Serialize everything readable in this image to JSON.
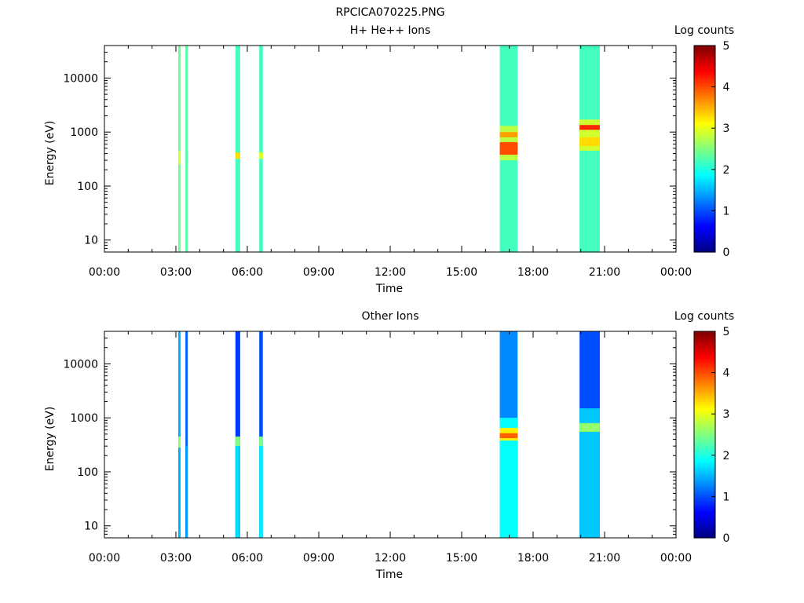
{
  "figure_title": "RPCICA070225.PNG",
  "chart_data": [
    {
      "type": "heatmap",
      "title": "H+ He++ Ions",
      "xlabel": "Time",
      "ylabel": "Energy (eV)",
      "y_scale": "log",
      "ylim": [
        6,
        40000
      ],
      "x_range_hours": [
        0,
        24
      ],
      "x_ticks": [
        "00:00",
        "03:00",
        "06:00",
        "09:00",
        "12:00",
        "15:00",
        "18:00",
        "21:00",
        "00:00"
      ],
      "y_ticks": [
        {
          "value": 10,
          "label": "10"
        },
        {
          "value": 100,
          "label": "100"
        },
        {
          "value": 1000,
          "label": "1000"
        },
        {
          "value": 10000,
          "label": "10000"
        }
      ],
      "colorbar": {
        "label": "Log counts",
        "min": 0,
        "max": 5,
        "ticks": [
          "0",
          "1",
          "2",
          "3",
          "4",
          "5"
        ]
      },
      "grid": false,
      "intervals": [
        {
          "start": 3.1,
          "end": 3.2,
          "base": 2.4,
          "bands": [
            {
              "lo": 250,
              "hi": 450,
              "v": 2.9
            }
          ]
        },
        {
          "start": 3.4,
          "end": 3.5,
          "base": 2.3,
          "bands": []
        },
        {
          "start": 5.5,
          "end": 5.7,
          "base": 2.2,
          "bands": [
            {
              "lo": 320,
              "hi": 420,
              "v": 3.3
            }
          ]
        },
        {
          "start": 6.5,
          "end": 6.65,
          "base": 2.2,
          "bands": [
            {
              "lo": 320,
              "hi": 420,
              "v": 3.0
            }
          ]
        },
        {
          "start": 16.6,
          "end": 17.35,
          "base": 2.2,
          "bands": [
            {
              "lo": 300,
              "hi": 1300,
              "v": 2.8
            },
            {
              "lo": 380,
              "hi": 650,
              "v": 4.0
            },
            {
              "lo": 800,
              "hi": 1000,
              "v": 3.6
            }
          ]
        },
        {
          "start": 19.95,
          "end": 20.8,
          "base": 2.2,
          "bands": [
            {
              "lo": 450,
              "hi": 1700,
              "v": 2.9
            },
            {
              "lo": 1100,
              "hi": 1350,
              "v": 4.2
            },
            {
              "lo": 550,
              "hi": 800,
              "v": 3.3
            }
          ]
        }
      ]
    },
    {
      "type": "heatmap",
      "title": "Other Ions",
      "xlabel": "Time",
      "ylabel": "Energy (eV)",
      "y_scale": "log",
      "ylim": [
        6,
        40000
      ],
      "x_range_hours": [
        0,
        24
      ],
      "x_ticks": [
        "00:00",
        "03:00",
        "06:00",
        "09:00",
        "12:00",
        "15:00",
        "18:00",
        "21:00",
        "00:00"
      ],
      "y_ticks": [
        {
          "value": 10,
          "label": "10"
        },
        {
          "value": 100,
          "label": "100"
        },
        {
          "value": 1000,
          "label": "1000"
        },
        {
          "value": 10000,
          "label": "10000"
        }
      ],
      "colorbar": {
        "label": "Log counts",
        "min": 0,
        "max": 5,
        "ticks": [
          "0",
          "1",
          "2",
          "3",
          "4",
          "5"
        ]
      },
      "grid": false,
      "intervals": [
        {
          "start": 3.1,
          "end": 3.2,
          "base": 1.5,
          "bands": [
            {
              "lo": 280,
              "hi": 450,
              "v": 2.6
            }
          ]
        },
        {
          "start": 3.4,
          "end": 3.5,
          "base": 1.1,
          "bands": [
            {
              "lo": 6,
              "hi": 300,
              "v": 1.4
            }
          ]
        },
        {
          "start": 5.5,
          "end": 5.7,
          "base": 0.9,
          "bands": [
            {
              "lo": 6,
              "hi": 300,
              "v": 1.7
            },
            {
              "lo": 300,
              "hi": 450,
              "v": 2.5
            }
          ]
        },
        {
          "start": 6.5,
          "end": 6.65,
          "base": 1.0,
          "bands": [
            {
              "lo": 6,
              "hi": 300,
              "v": 1.8
            },
            {
              "lo": 300,
              "hi": 450,
              "v": 2.5
            }
          ]
        },
        {
          "start": 16.6,
          "end": 17.35,
          "base": 1.3,
          "bands": [
            {
              "lo": 6,
              "hi": 1000,
              "v": 1.9
            },
            {
              "lo": 380,
              "hi": 650,
              "v": 3.2
            },
            {
              "lo": 420,
              "hi": 520,
              "v": 3.9
            }
          ]
        },
        {
          "start": 19.95,
          "end": 20.8,
          "base": 1.0,
          "bands": [
            {
              "lo": 6,
              "hi": 1500,
              "v": 1.6
            },
            {
              "lo": 550,
              "hi": 800,
              "v": 2.6
            }
          ]
        }
      ]
    }
  ]
}
